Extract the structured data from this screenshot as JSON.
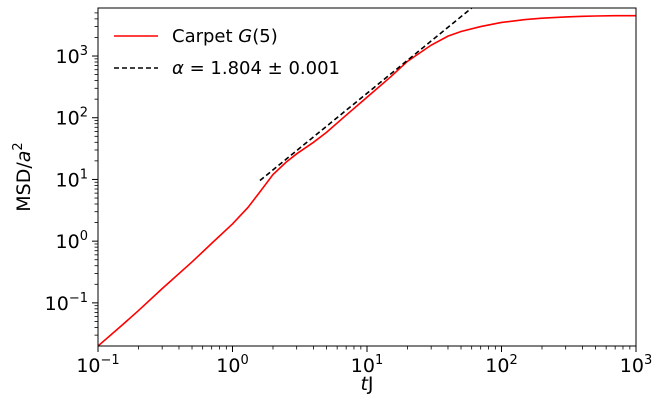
{
  "chart_data": {
    "type": "line",
    "title": "",
    "xlabel": {
      "italic": "t",
      "rest": "J"
    },
    "ylabel": {
      "base": "MSD/",
      "italic": "a",
      "sup": "2"
    },
    "xscale": "log",
    "yscale": "log",
    "xlim": [
      0.1,
      1000
    ],
    "ylim": [
      0.02,
      6000
    ],
    "grid": false,
    "legend_position": "top-left",
    "x_ticks": [
      {
        "base": "10",
        "exp": "−1",
        "value": 0.1
      },
      {
        "base": "10",
        "exp": "0",
        "value": 1
      },
      {
        "base": "10",
        "exp": "1",
        "value": 10
      },
      {
        "base": "10",
        "exp": "2",
        "value": 100
      },
      {
        "base": "10",
        "exp": "3",
        "value": 1000
      }
    ],
    "y_ticks": [
      {
        "base": "10",
        "exp": "−1",
        "value": 0.1
      },
      {
        "base": "10",
        "exp": "0",
        "value": 1
      },
      {
        "base": "10",
        "exp": "1",
        "value": 10
      },
      {
        "base": "10",
        "exp": "2",
        "value": 100
      },
      {
        "base": "10",
        "exp": "3",
        "value": 1000
      }
    ],
    "series": [
      {
        "name": {
          "plain": "Carpet ",
          "italic": "G",
          "rest": "(5)"
        },
        "color": "#ff0000",
        "style": "solid",
        "x": [
          0.1,
          0.15,
          0.2,
          0.3,
          0.5,
          0.7,
          1.0,
          1.3,
          1.6,
          2.0,
          2.5,
          3.0,
          4.0,
          5.0,
          7.0,
          10,
          15,
          20,
          30,
          40,
          50,
          70,
          100,
          150,
          200,
          300,
          400,
          500,
          700,
          1000
        ],
        "y": [
          0.02,
          0.043,
          0.075,
          0.17,
          0.46,
          0.92,
          1.9,
          3.5,
          6.3,
          12,
          19,
          26,
          40,
          58,
          110,
          215,
          460,
          820,
          1500,
          2100,
          2500,
          3000,
          3500,
          3900,
          4100,
          4300,
          4400,
          4450,
          4500,
          4500
        ]
      },
      {
        "name": {
          "plain": "",
          "italic": "α",
          "rest": " = 1.804 ± 0.001"
        },
        "color": "#000000",
        "style": "dashed",
        "x": [
          1.6,
          60
        ],
        "y": [
          9.6,
          6000
        ]
      }
    ]
  }
}
